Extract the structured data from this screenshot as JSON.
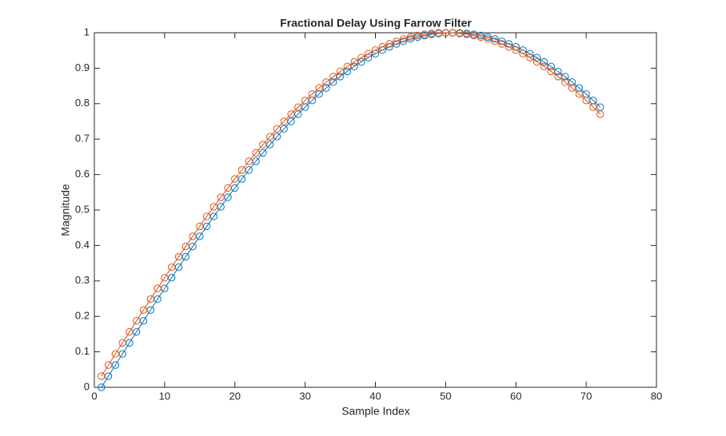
{
  "chart_data": {
    "type": "line",
    "title": "Fractional Delay Using Farrow Filter",
    "x_label": "Sample Index",
    "y_label": "Magnitude",
    "x": [
      1,
      2,
      3,
      4,
      5,
      6,
      7,
      8,
      9,
      10,
      11,
      12,
      13,
      14,
      15,
      16,
      17,
      18,
      19,
      20,
      21,
      22,
      23,
      24,
      25,
      26,
      27,
      28,
      29,
      30,
      31,
      32,
      33,
      34,
      35,
      36,
      37,
      38,
      39,
      40,
      41,
      42,
      43,
      44,
      45,
      46,
      47,
      48,
      49,
      50,
      51,
      52,
      53,
      54,
      55,
      56,
      57,
      58,
      59,
      60,
      61,
      62,
      63,
      64,
      65,
      66,
      67,
      68,
      69,
      70,
      71,
      72
    ],
    "series": [
      {
        "color": "#0072bd",
        "values": [
          0,
          0.0314,
          0.0628,
          0.0941,
          0.1253,
          0.1564,
          0.1874,
          0.2181,
          0.2487,
          0.279,
          0.309,
          0.3387,
          0.3681,
          0.3971,
          0.4258,
          0.454,
          0.4818,
          0.509,
          0.5358,
          0.5621,
          0.5878,
          0.6129,
          0.6374,
          0.6613,
          0.6845,
          0.7071,
          0.729,
          0.7501,
          0.7705,
          0.7902,
          0.809,
          0.8271,
          0.8443,
          0.8607,
          0.8763,
          0.891,
          0.9048,
          0.9178,
          0.9298,
          0.9409,
          0.9511,
          0.9603,
          0.9686,
          0.9759,
          0.9823,
          0.9877,
          0.9921,
          0.9956,
          0.998,
          0.9995,
          1,
          0.9995,
          0.998,
          0.9956,
          0.9921,
          0.9877,
          0.9823,
          0.9759,
          0.9686,
          0.9603,
          0.9511,
          0.9409,
          0.9298,
          0.9178,
          0.9048,
          0.891,
          0.8763,
          0.8607,
          0.8443,
          0.8271,
          0.809,
          0.7902
        ]
      },
      {
        "color": "#d95319",
        "values": [
          0.0314,
          0.0628,
          0.0941,
          0.1253,
          0.1564,
          0.1874,
          0.2181,
          0.2487,
          0.279,
          0.309,
          0.3387,
          0.3681,
          0.3971,
          0.4258,
          0.454,
          0.4818,
          0.509,
          0.5358,
          0.5621,
          0.5878,
          0.6129,
          0.6374,
          0.6613,
          0.6845,
          0.7071,
          0.729,
          0.7501,
          0.7705,
          0.7902,
          0.809,
          0.8271,
          0.8443,
          0.8607,
          0.8763,
          0.891,
          0.9048,
          0.9178,
          0.9298,
          0.9409,
          0.9511,
          0.9603,
          0.9686,
          0.9759,
          0.9823,
          0.9877,
          0.9921,
          0.9956,
          0.998,
          0.9995,
          1,
          0.9995,
          0.998,
          0.9956,
          0.9921,
          0.9877,
          0.9823,
          0.9759,
          0.9686,
          0.9603,
          0.9511,
          0.9409,
          0.9298,
          0.9178,
          0.9048,
          0.891,
          0.8763,
          0.8607,
          0.8443,
          0.8271,
          0.809,
          0.7902,
          0.7705
        ]
      }
    ],
    "xlim": [
      0,
      80
    ],
    "xticks": [
      0,
      10,
      20,
      30,
      40,
      50,
      60,
      70,
      80
    ],
    "ylim": [
      0,
      1
    ],
    "yticks": [
      0,
      0.1,
      0.2,
      0.3,
      0.4,
      0.5,
      0.6,
      0.7,
      0.8,
      0.9,
      1
    ],
    "grid": false,
    "marker": "circle"
  }
}
